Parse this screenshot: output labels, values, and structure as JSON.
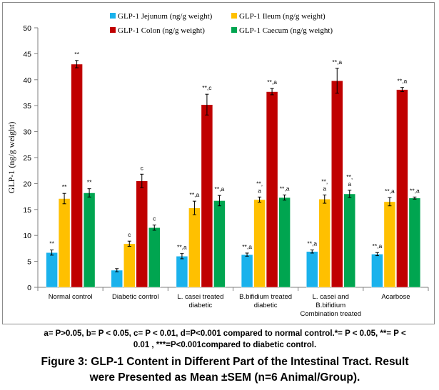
{
  "chart_data": {
    "type": "bar",
    "ylabel": "GLP-1  (ng/g weight)",
    "ylim": [
      0,
      50
    ],
    "yticks": [
      0,
      5,
      10,
      15,
      20,
      25,
      30,
      35,
      40,
      45,
      50
    ],
    "grid": false,
    "legend_position": "top",
    "categories": [
      [
        "Normal control"
      ],
      [
        "Diabetic control"
      ],
      [
        "L. casei treated",
        "diabetic"
      ],
      [
        "B.bifidium treated",
        "diabetic"
      ],
      [
        "L. casei and",
        "B.bifidium",
        "Combination treated"
      ],
      [
        "Acarbose"
      ]
    ],
    "series": [
      {
        "name": "GLP-1 Jejunum (ng/g weight)",
        "color": "#1ab2ec",
        "values": [
          6.7,
          3.3,
          6.0,
          6.3,
          6.9,
          6.4
        ],
        "errors": [
          0.5,
          0.3,
          0.5,
          0.3,
          0.3,
          0.3
        ],
        "labels": [
          [
            "**"
          ],
          [
            ""
          ],
          [
            "**,a"
          ],
          [
            "**,a"
          ],
          [
            "**,a"
          ],
          [
            "**,a"
          ]
        ]
      },
      {
        "name": "GLP-1 Ileum (ng/g weight)",
        "color": "#ffc000",
        "values": [
          17.1,
          8.4,
          15.3,
          16.9,
          17.0,
          16.5
        ],
        "errors": [
          1.0,
          0.5,
          1.3,
          0.5,
          0.8,
          0.8
        ],
        "labels": [
          [
            "**"
          ],
          [
            "c"
          ],
          [
            "**,a"
          ],
          [
            "**,",
            "a"
          ],
          [
            "**,",
            "a"
          ],
          [
            "**,a"
          ]
        ]
      },
      {
        "name": "GLP-1 Colon  (ng/g weight)",
        "color": "#c00000",
        "values": [
          43.0,
          20.5,
          35.2,
          37.7,
          39.8,
          38.1
        ],
        "errors": [
          0.7,
          1.3,
          2.0,
          0.6,
          2.4,
          0.4
        ],
        "labels": [
          [
            "**"
          ],
          [
            "c"
          ],
          [
            "**,c"
          ],
          [
            "**,a"
          ],
          [
            "**,a"
          ],
          [
            "**,a"
          ]
        ]
      },
      {
        "name": "GLP-1 Caecum  (ng/g weight)",
        "color": "#00a550",
        "values": [
          18.2,
          11.5,
          16.7,
          17.3,
          18.0,
          17.2
        ],
        "errors": [
          0.8,
          0.5,
          1.0,
          0.5,
          0.7,
          0.2
        ],
        "labels": [
          [
            "**"
          ],
          [
            "c"
          ],
          [
            "**,a"
          ],
          [
            "**,a"
          ],
          [
            "**,",
            "a"
          ],
          [
            "**,a"
          ]
        ]
      }
    ]
  },
  "footnote": {
    "line1": "a= P>0.05, b= P < 0.05, c= P < 0.01, d=P<0.001 compared to normal control.*= P < 0.05, **= P <",
    "line2": "0.01 , ***=P<0.001compared to diabetic control."
  },
  "caption": {
    "line1": "Figure 3: GLP-1 Content in Different Part of the Intestinal Tract. Result",
    "line2": "were Presented as Mean ±SEM (n=6 Animal/Group)."
  }
}
